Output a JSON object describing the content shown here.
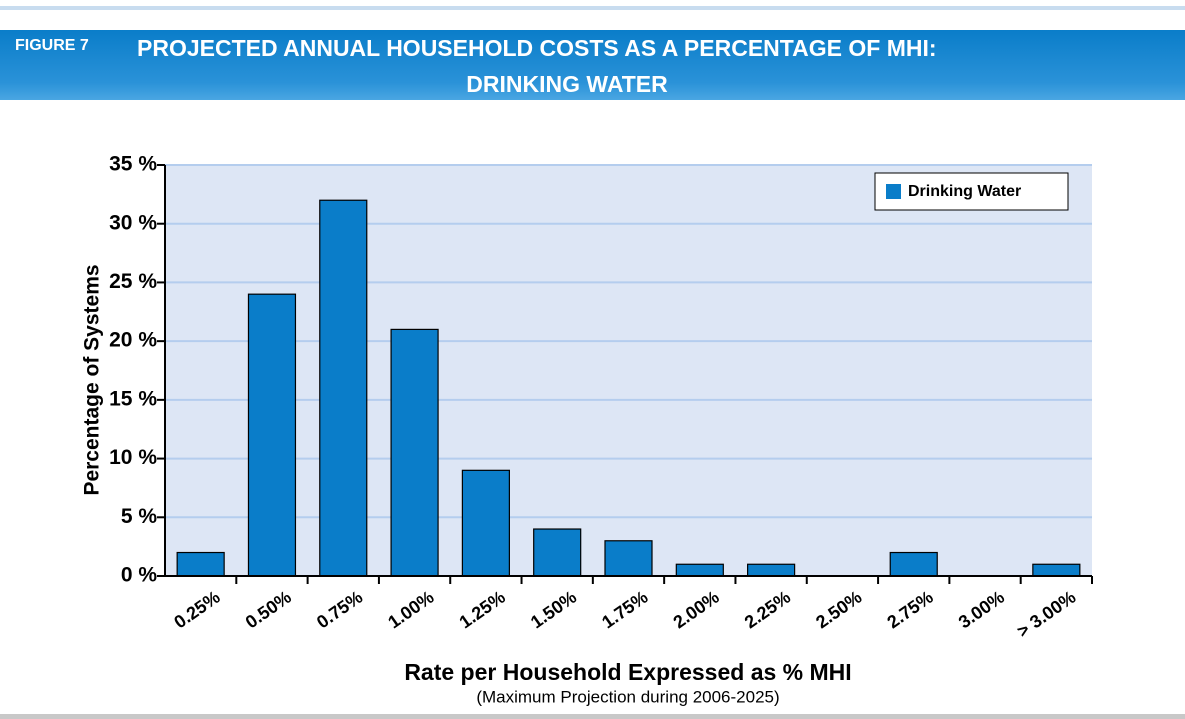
{
  "header": {
    "figure": "FIGURE 7",
    "title": [
      "PROJECTED ANNUAL HOUSEHOLD COSTS AS A PERCENTAGE OF MHI:",
      "DRINKING WATER"
    ]
  },
  "chart_data": {
    "type": "bar",
    "x_label": "Rate per Household Expressed as % MHI",
    "x_sublabel": "(Maximum Projection during 2006-2025)",
    "y_label": "Percentage of Systems",
    "categories": [
      "0.25%",
      "0.50%",
      "0.75%",
      "1.00%",
      "1.25%",
      "1.50%",
      "1.75%",
      "2.00%",
      "2.25%",
      "2.50%",
      "2.75%",
      "3.00%",
      "> 3.00%"
    ],
    "series": [
      {
        "name": "Drinking Water",
        "color": "#0a7dc9",
        "values": [
          2,
          24,
          32,
          21,
          9,
          4,
          3,
          1,
          1,
          0,
          2,
          0,
          1
        ]
      }
    ],
    "ylim": [
      0,
      35
    ],
    "yticks": [
      {
        "value": 0,
        "label": "0 %"
      },
      {
        "value": 5,
        "label": "5 %"
      },
      {
        "value": 10,
        "label": "10 %"
      },
      {
        "value": 15,
        "label": "15 %"
      },
      {
        "value": 20,
        "label": "20 %"
      },
      {
        "value": 25,
        "label": "25 %"
      },
      {
        "value": 30,
        "label": "30 %"
      },
      {
        "value": 35,
        "label": "35 %"
      }
    ],
    "grid": true,
    "legend": "top-right"
  }
}
